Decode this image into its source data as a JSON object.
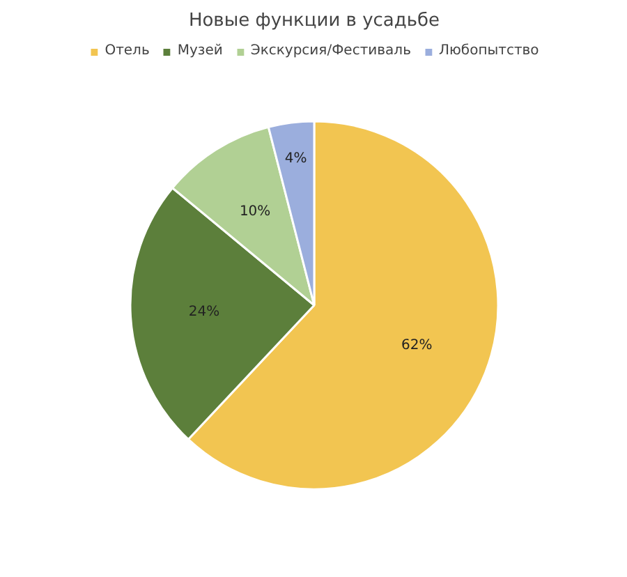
{
  "chart_data": {
    "type": "pie",
    "title": "Новые функции в усадьбе",
    "categories": [
      "Отель",
      "Музей",
      "Экскурсия/Фестиваль",
      "Любопытство"
    ],
    "values": [
      62,
      24,
      10,
      4
    ],
    "colors": [
      "#f2c551",
      "#5c7f3b",
      "#b1d094",
      "#9baedd"
    ],
    "value_labels": [
      "62%",
      "24%",
      "10%",
      "4%"
    ],
    "legend": "top"
  }
}
